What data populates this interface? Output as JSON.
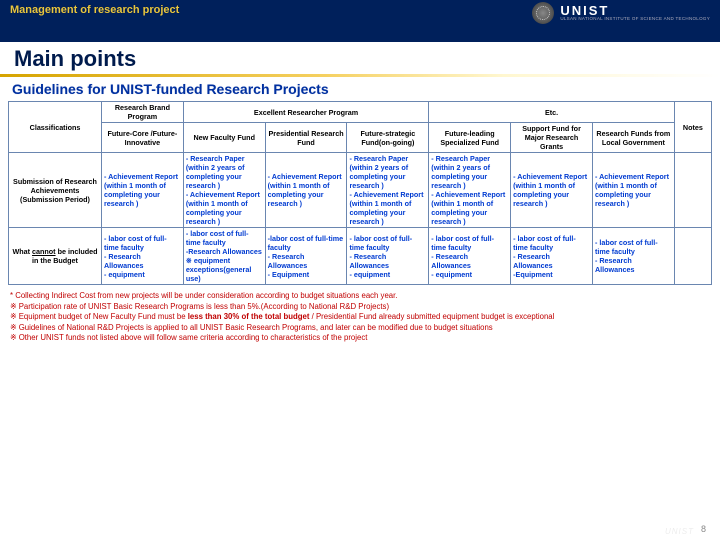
{
  "header": {
    "breadcrumb": "Management of research project",
    "logo_name": "UNIST",
    "logo_sub": "ULSAN NATIONAL INSTITUTE OF\nSCIENCE AND TECHNOLOGY",
    "main_title": "Main points",
    "sub_title": "Guidelines for UNIST-funded Research Projects"
  },
  "table": {
    "group_headers": {
      "classifications": "Classifications",
      "research_brand": "Research Brand Program",
      "excellent": "Excellent Researcher Program",
      "etc": "Etc.",
      "notes": "Notes"
    },
    "columns": [
      "Future-Core /Future-Innovative",
      "New Faculty Fund",
      "Presidential Research Fund",
      "Future-strategic Fund(on-going)",
      "Future-leading Specialized Fund",
      "Support Fund for Major Research Grants",
      "Research Funds from Local Government"
    ],
    "rows": [
      {
        "label": "Submission of Research Achievements (Submission Period)",
        "cells": [
          "- Achievement Report\n(within 1 month of completing your research )",
          "- Research Paper\n(within 2 years of completing your research )\n- Achievement Report\n(within 1 month of completing your research )",
          "- Achievement Report\n(within 1 month of completing your research )",
          "- Research Paper\n(within 2 years of completing your research )\n- Achievement Report\n(within 1 month of completing your research )",
          "- Research Paper\n(within 2 years of completing your research )\n- Achievement Report\n(within 1 month of completing your research )",
          "- Achievement Report\n(within 1 month of completing your research )",
          "- Achievement Report\n(within 1 month of completing your research )"
        ],
        "note": ""
      },
      {
        "label": "What cannot be included in the Budget",
        "cells": [
          "- labor cost of full-time faculty\n- Research Allowances\n- equipment",
          "- labor cost of full-time faculty\n-Research Allowances\n※ equipment exceptions(general use)",
          "-labor cost of full-time faculty\n- Research Allowances\n- Equipment",
          "- labor cost of full-time faculty\n- Research Allowances\n- equipment",
          "- labor cost of full-time faculty\n- Research Allowances\n- equipment",
          "- labor cost of full-time faculty\n- Research Allowances\n-Equipment",
          "- labor cost of full-time faculty\n- Research Allowances"
        ],
        "note": ""
      }
    ]
  },
  "footnotes": [
    "* Collecting Indirect Cost from new projects will be under consideration according to budget situations each year.",
    "※ Participation rate of UNIST Basic Research Programs is less than 5%.(According to National R&D Projects)",
    "※ Equipment budget of New Faculty Fund must be less than 30% of the total budget / Presidential Fund already submitted equipment budget is exceptional",
    "※ Guidelines of National R&D Projects is applied to all UNIST Basic Research Programs, and later can be modified due to budget situations",
    "※ Other UNIST funds not listed above will follow same criteria according to characteristics of the project"
  ],
  "page_number": "8",
  "colors": {
    "navy": "#00205b",
    "gold": "#e8c63f",
    "title_blue": "#001b4d",
    "link_blue": "#003bd1",
    "note_red": "#c00000",
    "border": "#6a86b0"
  },
  "label_underline": "cannot"
}
